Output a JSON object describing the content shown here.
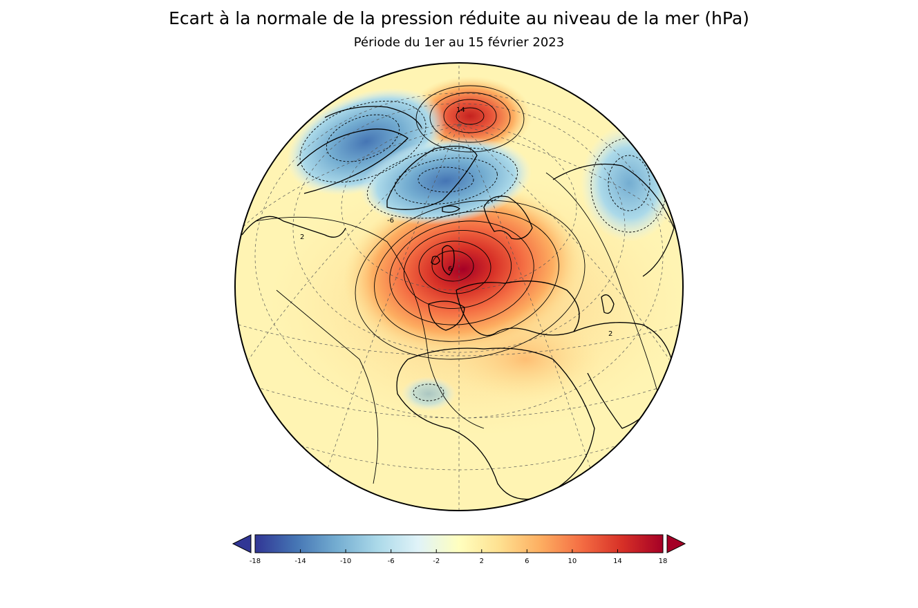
{
  "figure": {
    "title": "Ecart à la normale de la pression réduite au niveau de la mer (hPa)",
    "subtitle": "Période du 1er au 15 février 2023"
  },
  "map": {
    "projection": "orthographic",
    "center_region": "North Atlantic / Europe",
    "graticule": "dashed",
    "contours": "solid positive, dashed negative",
    "contour_labels": [
      "14",
      "2",
      "6",
      "2",
      "-6"
    ],
    "anomalies": [
      {
        "name": "anticyclone-europe",
        "sign": "positive",
        "peak_hpa": 18
      },
      {
        "name": "anticyclone-arctic",
        "sign": "positive",
        "peak_hpa": 16
      },
      {
        "name": "low-greenland-iceland",
        "sign": "negative",
        "peak_hpa": -14
      },
      {
        "name": "low-canada",
        "sign": "negative",
        "peak_hpa": -10
      },
      {
        "name": "low-siberia",
        "sign": "negative",
        "peak_hpa": -8
      }
    ]
  },
  "colorbar": {
    "min": -18,
    "max": 18,
    "extend": "both",
    "ticks": [
      "-18",
      "-14",
      "-10",
      "-6",
      "-2",
      "2",
      "6",
      "10",
      "14",
      "18"
    ],
    "colors": [
      "#313695",
      "#4575b4",
      "#74add1",
      "#abd9e9",
      "#e0f3f8",
      "#ffffbf",
      "#fee090",
      "#fdae61",
      "#f46d43",
      "#d73027",
      "#a50026"
    ]
  }
}
